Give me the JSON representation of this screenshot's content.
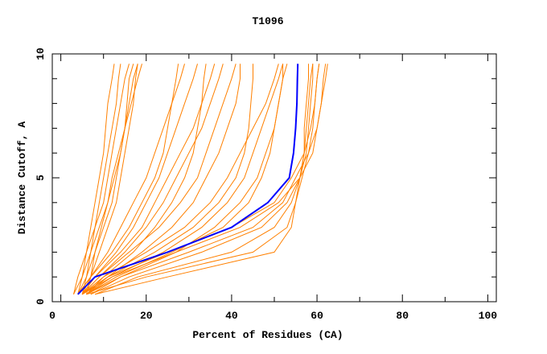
{
  "chart_data": {
    "type": "line",
    "title": "T1096",
    "xlabel": "Percent of Residues (CA)",
    "ylabel": "Distance Cutoff, A",
    "xlim": [
      -2,
      102
    ],
    "ylim": [
      0,
      10
    ],
    "xticks": [
      0,
      20,
      40,
      60,
      80,
      100
    ],
    "yticks": [
      0,
      5,
      10
    ],
    "grid": false,
    "colors": {
      "models": "#ff8000",
      "highlight": "#0000ff"
    },
    "y": [
      0.3,
      1,
      2,
      3,
      4,
      5,
      6,
      7,
      8,
      9,
      9.6
    ],
    "series": [
      {
        "x": [
          3,
          4,
          6,
          8,
          10,
          11,
          12,
          13,
          14,
          15,
          16
        ]
      },
      {
        "x": [
          4,
          5,
          7,
          9,
          11,
          12,
          13.5,
          15,
          16,
          17,
          18
        ]
      },
      {
        "x": [
          5,
          6,
          7,
          8,
          9,
          10,
          11,
          12,
          13,
          13.5,
          14
        ]
      },
      {
        "x": [
          4,
          6,
          8,
          10,
          12,
          13,
          14,
          15,
          16.5,
          18,
          19
        ]
      },
      {
        "x": [
          3,
          5,
          6,
          7,
          8,
          9,
          10,
          10.5,
          11,
          12,
          12.5
        ]
      },
      {
        "x": [
          5,
          7,
          9,
          11,
          13,
          14,
          15,
          16,
          17,
          17.5,
          18
        ]
      },
      {
        "x": [
          6,
          7,
          8,
          9.5,
          11,
          12.5,
          14,
          15,
          15.5,
          16,
          17
        ]
      },
      {
        "x": [
          4,
          7,
          11,
          14,
          17,
          20,
          22,
          24,
          26,
          28,
          29
        ]
      },
      {
        "x": [
          5,
          8,
          13,
          17,
          20,
          23,
          25,
          27,
          29,
          31,
          32
        ]
      },
      {
        "x": [
          4,
          8,
          14,
          19,
          22,
          25,
          28,
          31,
          33,
          35,
          36
        ]
      },
      {
        "x": [
          5,
          9,
          15,
          20,
          24,
          27,
          30,
          33,
          35,
          37,
          38
        ]
      },
      {
        "x": [
          6,
          10,
          17,
          22,
          26,
          29,
          31,
          32,
          33,
          33.5,
          34
        ]
      },
      {
        "x": [
          5,
          9,
          16,
          23,
          28,
          32,
          34,
          36,
          38,
          40,
          41
        ]
      },
      {
        "x": [
          4,
          7,
          12,
          16,
          19,
          22,
          24,
          25,
          26,
          27,
          27.5
        ]
      },
      {
        "x": [
          6,
          11,
          19,
          26,
          31,
          34,
          37,
          39,
          41,
          42,
          42
        ]
      },
      {
        "x": [
          5,
          10,
          20,
          29,
          35,
          39,
          42,
          45,
          48,
          50,
          51
        ]
      },
      {
        "x": [
          6,
          12,
          24,
          33,
          39,
          43,
          45,
          47,
          49,
          51,
          52
        ]
      },
      {
        "x": [
          5,
          11,
          22,
          31,
          37,
          41,
          43,
          44,
          44.5,
          45,
          45
        ]
      },
      {
        "x": [
          7,
          14,
          27,
          36,
          42,
          46,
          48,
          50,
          51,
          52,
          53
        ]
      },
      {
        "x": [
          6,
          13,
          26,
          38,
          44,
          47,
          49,
          50,
          51,
          52,
          52
        ]
      },
      {
        "x": [
          5,
          11,
          25,
          40,
          50,
          54,
          57,
          58.5,
          59.5,
          60,
          60.5
        ]
      },
      {
        "x": [
          6,
          14,
          30,
          45,
          52,
          55,
          58,
          60,
          61,
          61.5,
          62
        ]
      },
      {
        "x": [
          5,
          12,
          27,
          42,
          51,
          56,
          59,
          60,
          61,
          62,
          62.5
        ]
      },
      {
        "x": [
          7,
          16,
          33,
          47,
          53,
          56,
          57.5,
          58,
          58.5,
          59,
          59
        ]
      },
      {
        "x": [
          8,
          18,
          40,
          50,
          54,
          56,
          57,
          57,
          57.5,
          58,
          58
        ]
      },
      {
        "x": [
          8,
          25,
          50,
          54,
          55,
          56,
          57,
          57.5,
          58,
          58.5,
          59
        ]
      },
      {
        "x": [
          6,
          20,
          45,
          53,
          55,
          56.5,
          58,
          59,
          59.5,
          60,
          60.5
        ]
      }
    ],
    "highlight": {
      "x": [
        4,
        8,
        25,
        40,
        48.5,
        53.5,
        54.5,
        55,
        55.3,
        55.4,
        55.5
      ]
    }
  }
}
